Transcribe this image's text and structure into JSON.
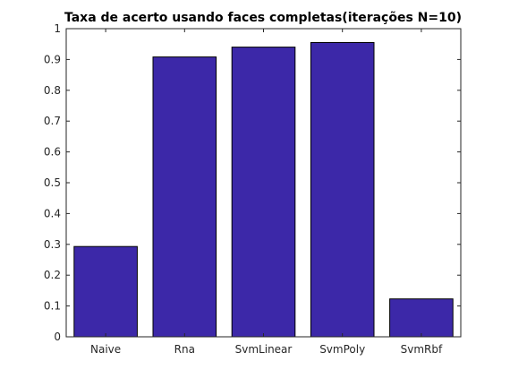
{
  "chart_data": {
    "type": "bar",
    "title": "Taxa de acerto usando faces completas(iterações N=10)",
    "xlabel": "",
    "ylabel": "",
    "categories": [
      "Naive",
      "Rna",
      "SvmLinear",
      "SvmPoly",
      "SvmRbf"
    ],
    "values": [
      0.293,
      0.908,
      0.94,
      0.955,
      0.123
    ],
    "ylim": [
      0,
      1
    ],
    "yticks": [
      "0",
      "0.1",
      "0.2",
      "0.3",
      "0.4",
      "0.5",
      "0.6",
      "0.7",
      "0.8",
      "0.9",
      "1"
    ],
    "grid": false,
    "legend": "none",
    "bar_color": "#3c28a8"
  }
}
